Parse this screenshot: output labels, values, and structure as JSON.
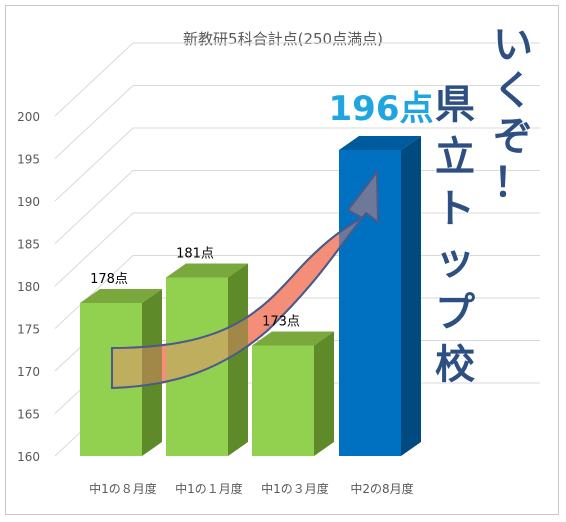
{
  "chart_data": {
    "type": "bar",
    "title": "新教研5科合計点(250点満点)",
    "categories": [
      "中1の８月度",
      "中1の１月度",
      "中1の３月度",
      "中2の8月度"
    ],
    "values": [
      178,
      181,
      173,
      196
    ],
    "data_labels": [
      "178点",
      "181点",
      "173点",
      "196点"
    ],
    "ylim": [
      160,
      200
    ],
    "yticks": [
      "160",
      "165",
      "170",
      "175",
      "180",
      "185",
      "190",
      "195",
      "200"
    ],
    "grid": true,
    "three_d": true,
    "highlight_index": 3,
    "annotation": "いくぞ！県立トップ校",
    "colors": {
      "bar": "#92d050",
      "bar_top": "#7aa83c",
      "bar_side": "#5e8a2a",
      "highlight": "#0070c0",
      "highlight_top": "#005a9e",
      "highlight_side": "#004a80",
      "highlight_label": "#1fa6e0",
      "annotation": "#2e4f82",
      "arrow_fill": "#f4846c",
      "arrow_stroke": "#4a5a8a",
      "grid": "#d9d9d9",
      "axis_text": "#595959"
    }
  }
}
